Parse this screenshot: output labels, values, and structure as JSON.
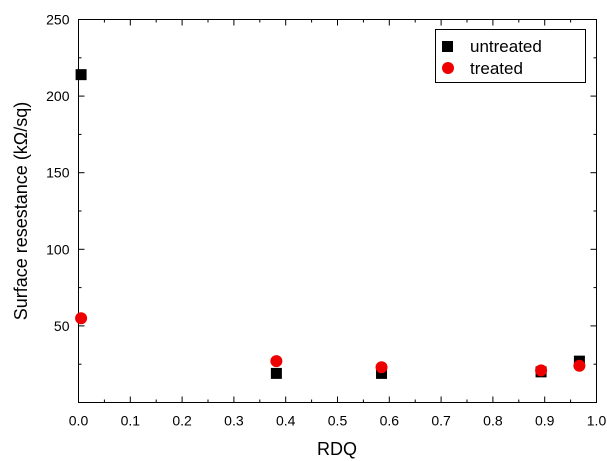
{
  "chart_data": {
    "type": "scatter",
    "title": "",
    "xlabel": "RDQ",
    "ylabel": "Surface resestance (kΩ/sq)",
    "xlim": [
      0.0,
      1.0
    ],
    "ylim": [
      0,
      250
    ],
    "x_ticks": [
      "0.0",
      "0.1",
      "0.2",
      "0.3",
      "0.4",
      "0.5",
      "0.6",
      "0.7",
      "0.8",
      "0.9",
      "1.0"
    ],
    "y_ticks": [
      "50",
      "100",
      "150",
      "200",
      "250"
    ],
    "grid": false,
    "legend_position": "top-right",
    "series": [
      {
        "name": "untreated",
        "marker": "square",
        "color": "#000000",
        "x": [
          0.005,
          0.382,
          0.585,
          0.893,
          0.967
        ],
        "y": [
          214,
          19,
          19,
          20,
          27
        ]
      },
      {
        "name": "treated",
        "marker": "circle",
        "color": "#ee0000",
        "x": [
          0.005,
          0.382,
          0.585,
          0.893,
          0.967
        ],
        "y": [
          55,
          27,
          23,
          21,
          24
        ]
      }
    ]
  }
}
